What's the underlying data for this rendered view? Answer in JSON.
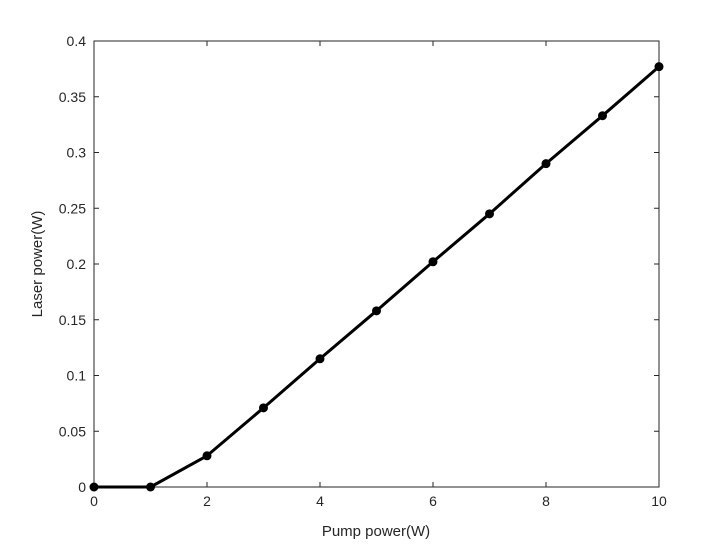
{
  "chart_data": {
    "type": "line",
    "title": "",
    "xlabel": "Pump power(W)",
    "ylabel": "Laser power(W)",
    "xlim": [
      0,
      10
    ],
    "ylim": [
      0,
      0.4
    ],
    "xticks": [
      0,
      2,
      4,
      6,
      8,
      10
    ],
    "xtick_labels": [
      "0",
      "2",
      "4",
      "6",
      "8",
      "10"
    ],
    "yticks": [
      0,
      0.05,
      0.1,
      0.15,
      0.2,
      0.25,
      0.3,
      0.35,
      0.4
    ],
    "ytick_labels": [
      "0",
      "0.05",
      "0.1",
      "0.15",
      "0.2",
      "0.25",
      "0.3",
      "0.35",
      "0.4"
    ],
    "grid": false,
    "legend": "none",
    "series": [
      {
        "color": "#000000",
        "marker": "filled-circle",
        "x": [
          0,
          1,
          2,
          3,
          4,
          5,
          6,
          7,
          8,
          9,
          10
        ],
        "y": [
          0,
          0,
          0.028,
          0.071,
          0.115,
          0.158,
          0.202,
          0.245,
          0.29,
          0.333,
          0.377
        ]
      }
    ]
  }
}
